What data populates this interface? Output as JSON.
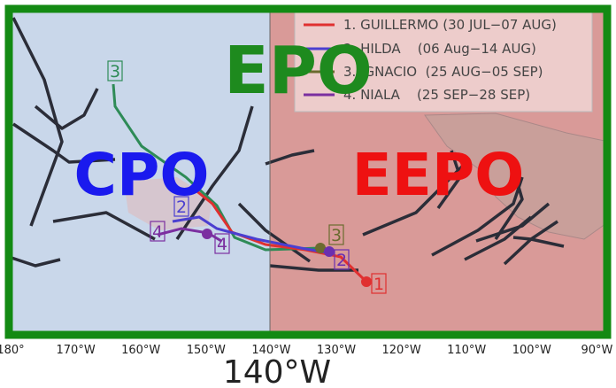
{
  "map": {
    "regions": {
      "epo": "EPO",
      "cpo": "CPO",
      "eepo": "EEPO"
    },
    "legend": [
      "1. GUILLERMO (30 JUL−07 AUG)",
      "2. HILDA    (06 Aug−14 AUG)",
      "3. IGNACIO  (25 AUG−05 SEP)",
      "4. NIALA    (25 SEP−28 SEP)"
    ],
    "lon_ticks": [
      "180°",
      "170°W",
      "160°W",
      "150°W",
      "140°W",
      "130°W",
      "120°W",
      "110°W",
      "100°W",
      "90°W"
    ],
    "boundary_label": "140°W",
    "track_labels": [
      "1",
      "2",
      "3",
      "4",
      "3",
      "2",
      "4"
    ]
  }
}
